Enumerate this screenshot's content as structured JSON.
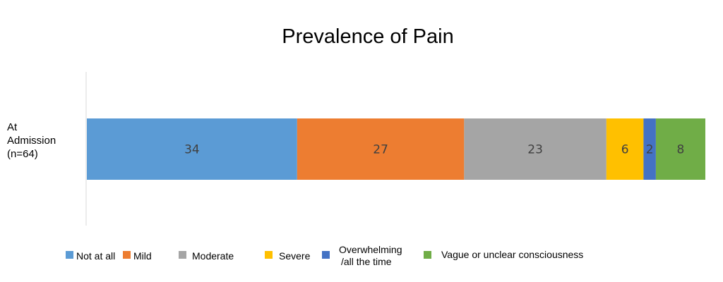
{
  "chart_data": {
    "type": "bar",
    "orientation": "horizontal",
    "stacked": true,
    "title": "Prevalence of Pain",
    "categories": [
      "At Admission (n=64)"
    ],
    "category_label_lines": [
      "At",
      "Admission",
      "(n=64)"
    ],
    "series": [
      {
        "name": "Not at all",
        "values": [
          34
        ],
        "color": "#5B9BD5"
      },
      {
        "name": "Mild",
        "values": [
          27
        ],
        "color": "#ED7D31"
      },
      {
        "name": "Moderate",
        "values": [
          23
        ],
        "color": "#A5A5A5"
      },
      {
        "name": "Severe",
        "values": [
          6
        ],
        "color": "#FFC000"
      },
      {
        "name": "Overwhelming /all the time",
        "values": [
          2
        ],
        "color": "#4472C4",
        "label_lines": [
          "Overwhelming",
          "/all the time"
        ]
      },
      {
        "name": "Vague or unclear consciousness",
        "values": [
          8
        ],
        "color": "#70AD47"
      }
    ],
    "xlim": [
      0,
      100
    ],
    "grid": false,
    "legend_position": "bottom"
  }
}
